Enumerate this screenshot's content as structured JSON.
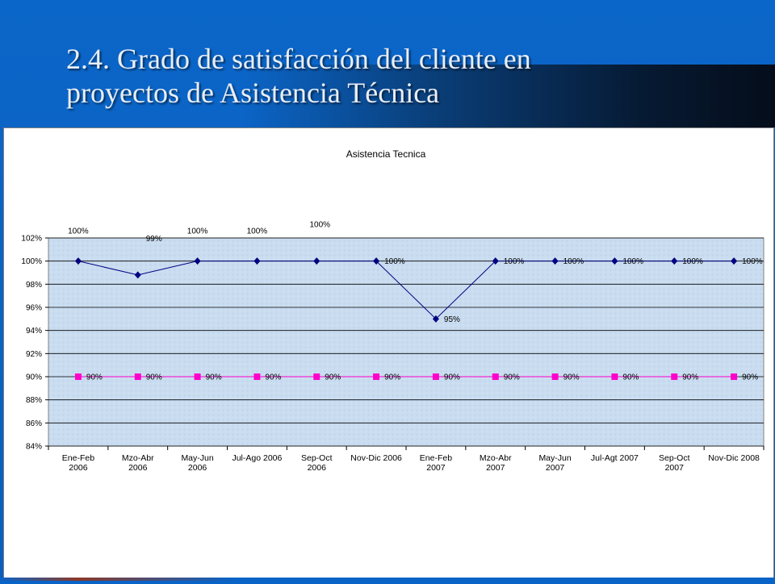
{
  "slide": {
    "title_line1": "2.4. Grado de satisfacción del cliente en",
    "title_line2": "proyectos de Asistencia Técnica"
  },
  "colors": {
    "slide_bg": "#0a63c6",
    "series_actual": "#000080",
    "series_target": "#ff00cc",
    "plot_bg": "#c9dcf0"
  },
  "chart_data": {
    "type": "line",
    "title": "Asistencia Tecnica",
    "xlabel": "",
    "ylabel": "",
    "categories": [
      [
        "Ene-Feb",
        "2006"
      ],
      [
        "Mzo-Abr",
        "2006"
      ],
      [
        "May-Jun",
        "2006"
      ],
      [
        "Jul-Ago 2006"
      ],
      [
        "Sep-Oct",
        "2006"
      ],
      [
        "Nov-Dic 2006"
      ],
      [
        "Ene-Feb",
        "2007"
      ],
      [
        "Mzo-Abr",
        "2007"
      ],
      [
        "May-Jun",
        "2007"
      ],
      [
        "Jul-Agt 2007"
      ],
      [
        "Sep-Oct",
        "2007"
      ],
      [
        "Nov-Dic 2008"
      ]
    ],
    "ylim": [
      0.84,
      1.02
    ],
    "yticks": [
      "84%",
      "86%",
      "88%",
      "90%",
      "92%",
      "94%",
      "96%",
      "98%",
      "100%",
      "102%"
    ],
    "grid": true,
    "series": [
      {
        "marker": "diamond",
        "values": [
          1.0,
          0.988,
          1.0,
          1.0,
          1.0,
          1.0,
          0.95,
          1.0,
          1.0,
          1.0,
          1.0,
          1.0
        ],
        "labels": [
          "100%",
          "99%",
          "100%",
          "100%",
          "100%",
          "100%",
          "95%",
          "100%",
          "100%",
          "100%",
          "100%",
          "100%"
        ],
        "label_placement": [
          "above-high",
          "above-low",
          "above-high",
          "above-high",
          "above-top",
          "right",
          "right",
          "right",
          "right",
          "right",
          "right",
          "right"
        ]
      },
      {
        "marker": "square",
        "values": [
          0.9,
          0.9,
          0.9,
          0.9,
          0.9,
          0.9,
          0.9,
          0.9,
          0.9,
          0.9,
          0.9,
          0.9
        ],
        "labels": [
          "90%",
          "90%",
          "90%",
          "90%",
          "90%",
          "90%",
          "90%",
          "90%",
          "90%",
          "90%",
          "90%",
          "90%"
        ],
        "label_placement": [
          "right",
          "right",
          "right",
          "right",
          "right",
          "right",
          "right",
          "right",
          "right",
          "right",
          "right",
          "right"
        ]
      }
    ]
  }
}
